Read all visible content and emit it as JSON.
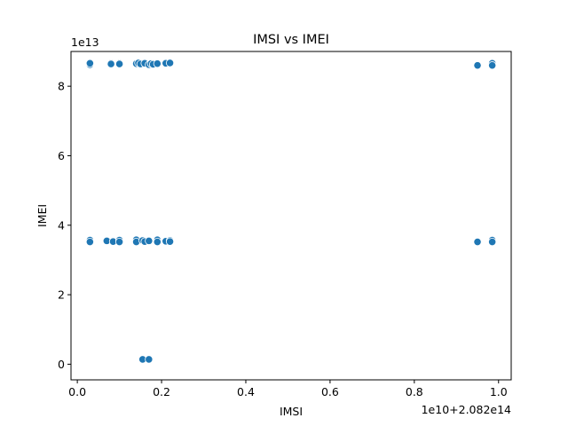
{
  "chart_data": {
    "type": "scatter",
    "title": "IMSI vs IMEI",
    "xlabel": "IMSI",
    "ylabel": "IMEI",
    "x_offset_label": "1e10+2.082e14",
    "y_offset_label": "1e13",
    "xlim": [
      -0.015,
      1.03
    ],
    "ylim": [
      -0.45,
      9.0
    ],
    "x_ticks": [
      {
        "value": 0.0,
        "label": "0.0"
      },
      {
        "value": 0.2,
        "label": "0.2"
      },
      {
        "value": 0.4,
        "label": "0.4"
      },
      {
        "value": 0.6,
        "label": "0.6"
      },
      {
        "value": 0.8,
        "label": "0.8"
      },
      {
        "value": 1.0,
        "label": "1.0"
      }
    ],
    "y_ticks": [
      {
        "value": 0,
        "label": "0"
      },
      {
        "value": 2,
        "label": "2"
      },
      {
        "value": 4,
        "label": "4"
      },
      {
        "value": 6,
        "label": "6"
      },
      {
        "value": 8,
        "label": "8"
      }
    ],
    "grid": false,
    "legend": "none",
    "marker_color": "#1f77b4",
    "marker_edge_color": "#ffffff",
    "points": [
      {
        "x": 0.03,
        "y": 8.62
      },
      {
        "x": 0.03,
        "y": 8.66
      },
      {
        "x": 0.08,
        "y": 8.66
      },
      {
        "x": 0.08,
        "y": 8.64
      },
      {
        "x": 0.1,
        "y": 8.66
      },
      {
        "x": 0.1,
        "y": 8.64
      },
      {
        "x": 0.14,
        "y": 8.65
      },
      {
        "x": 0.145,
        "y": 8.67
      },
      {
        "x": 0.15,
        "y": 8.64
      },
      {
        "x": 0.16,
        "y": 8.66
      },
      {
        "x": 0.17,
        "y": 8.62
      },
      {
        "x": 0.175,
        "y": 8.65
      },
      {
        "x": 0.18,
        "y": 8.63
      },
      {
        "x": 0.19,
        "y": 8.65
      },
      {
        "x": 0.21,
        "y": 8.66
      },
      {
        "x": 0.22,
        "y": 8.67
      },
      {
        "x": 0.95,
        "y": 8.6
      },
      {
        "x": 0.985,
        "y": 8.66
      },
      {
        "x": 0.985,
        "y": 8.6
      },
      {
        "x": 0.03,
        "y": 3.57
      },
      {
        "x": 0.03,
        "y": 3.52
      },
      {
        "x": 0.07,
        "y": 3.55
      },
      {
        "x": 0.085,
        "y": 3.53
      },
      {
        "x": 0.1,
        "y": 3.57
      },
      {
        "x": 0.1,
        "y": 3.52
      },
      {
        "x": 0.14,
        "y": 3.58
      },
      {
        "x": 0.14,
        "y": 3.52
      },
      {
        "x": 0.155,
        "y": 3.56
      },
      {
        "x": 0.16,
        "y": 3.53
      },
      {
        "x": 0.17,
        "y": 3.55
      },
      {
        "x": 0.19,
        "y": 3.58
      },
      {
        "x": 0.19,
        "y": 3.52
      },
      {
        "x": 0.21,
        "y": 3.54
      },
      {
        "x": 0.22,
        "y": 3.56
      },
      {
        "x": 0.22,
        "y": 3.53
      },
      {
        "x": 0.95,
        "y": 3.52
      },
      {
        "x": 0.985,
        "y": 3.57
      },
      {
        "x": 0.985,
        "y": 3.52
      },
      {
        "x": 0.155,
        "y": 0.14
      },
      {
        "x": 0.17,
        "y": 0.14
      }
    ]
  }
}
